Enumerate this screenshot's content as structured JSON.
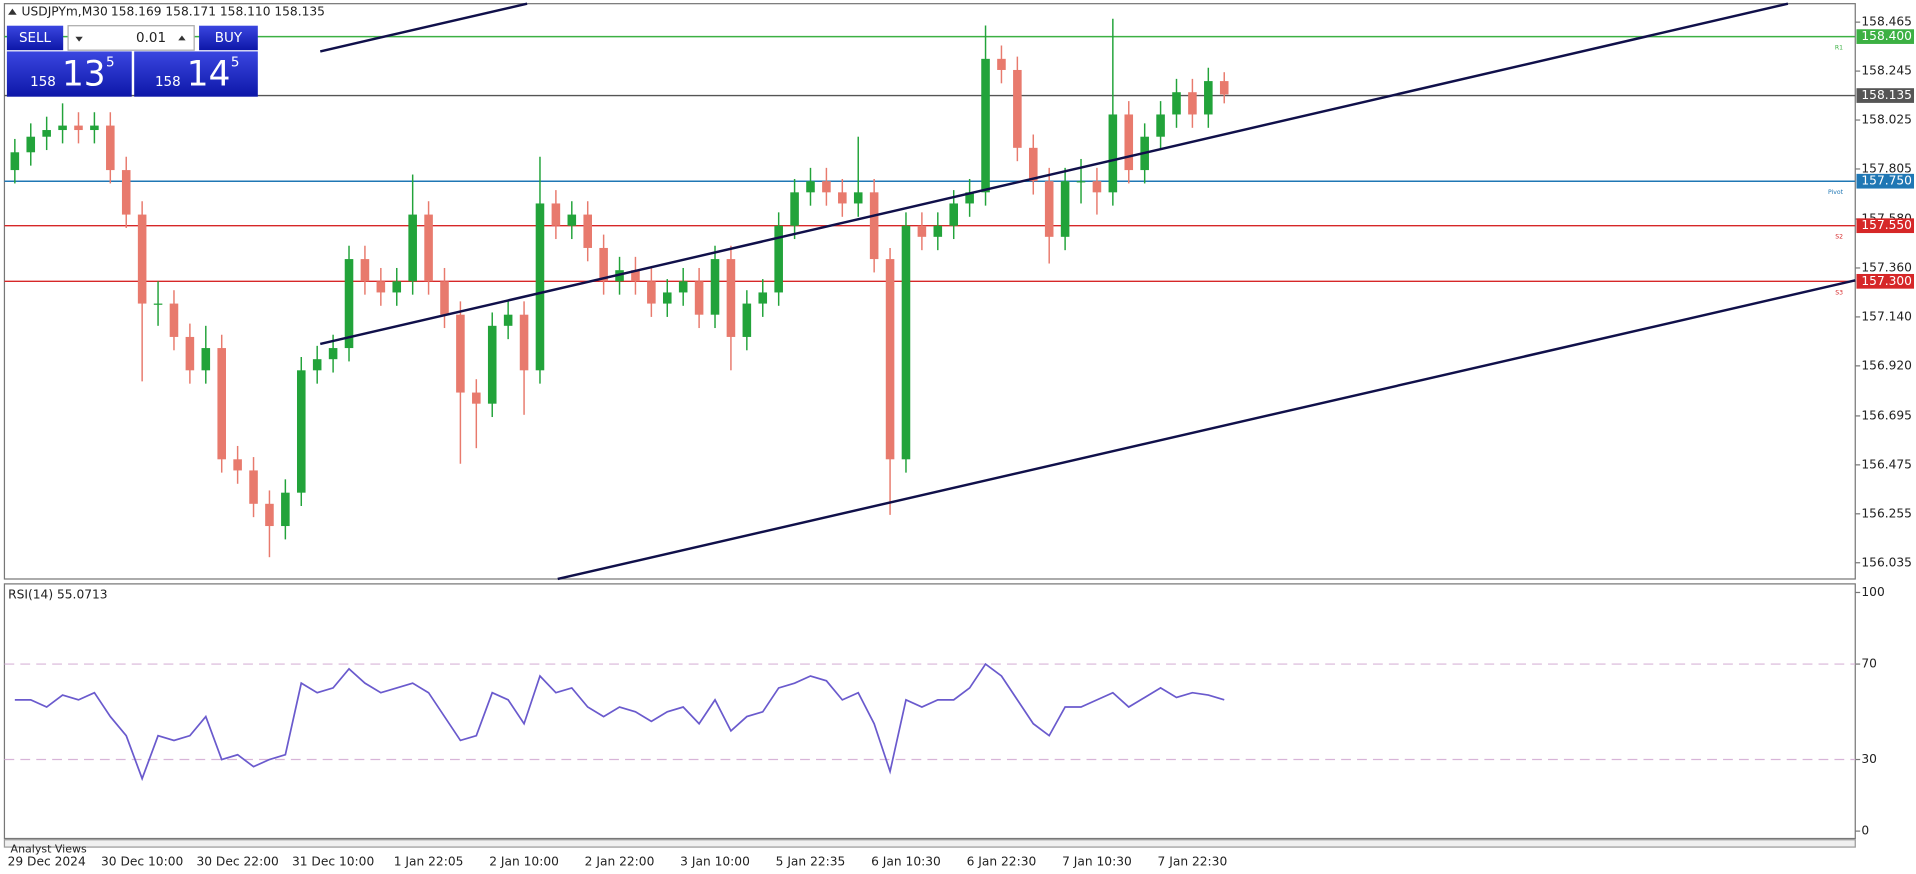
{
  "header": {
    "symbol": "USDJPYm,M30",
    "quotes": "158.169 158.171 158.110 158.135"
  },
  "trade_panel": {
    "sell_label": "SELL",
    "lot": "0.01",
    "buy_label": "BUY",
    "sell_price": {
      "big_figure": "158",
      "pips": "13",
      "fraction": "5"
    },
    "buy_price": {
      "big_figure": "158",
      "pips": "14",
      "fraction": "5"
    }
  },
  "footer_tab": "Analyst Views",
  "chart_data": [
    {
      "type": "candlestick",
      "up_color": "#22a33a",
      "down_color": "#e87a6d",
      "categories": [
        null,
        null,
        "29 Dec 2024",
        null,
        null,
        null,
        null,
        null,
        "30 Dec 10:00",
        null,
        null,
        null,
        null,
        null,
        "30 Dec 22:00",
        null,
        null,
        null,
        null,
        null,
        "31 Dec 10:00",
        null,
        null,
        null,
        null,
        null,
        "1 Jan 22:05",
        null,
        null,
        null,
        null,
        null,
        "2 Jan 10:00",
        null,
        null,
        null,
        null,
        null,
        "2 Jan 22:00",
        null,
        null,
        null,
        null,
        null,
        "3 Jan 10:00",
        null,
        null,
        null,
        null,
        null,
        "5 Jan 22:35",
        null,
        null,
        null,
        null,
        null,
        "6 Jan 10:30",
        null,
        null,
        null,
        null,
        null,
        "6 Jan 22:30",
        null,
        null,
        null,
        null,
        null,
        "7 Jan 10:30",
        null,
        null,
        null,
        null,
        null,
        "7 Jan 22:30",
        null,
        null
      ],
      "open": [
        157.8,
        157.88,
        157.95,
        157.98,
        158.0,
        157.98,
        158.0,
        157.8,
        157.6,
        157.2,
        157.2,
        157.05,
        156.9,
        157.0,
        156.5,
        156.45,
        156.3,
        156.2,
        156.35,
        156.9,
        156.95,
        157.0,
        157.4,
        157.3,
        157.25,
        157.3,
        157.6,
        157.3,
        157.15,
        156.8,
        156.75,
        157.1,
        157.15,
        156.9,
        157.65,
        157.55,
        157.6,
        157.45,
        157.3,
        157.35,
        157.3,
        157.2,
        157.25,
        157.3,
        157.15,
        157.4,
        157.05,
        157.2,
        157.25,
        157.55,
        157.7,
        157.75,
        157.7,
        157.65,
        157.7,
        157.4,
        156.5,
        157.55,
        157.5,
        157.55,
        157.65,
        157.7,
        158.3,
        158.25,
        157.9,
        157.75,
        157.5,
        157.75,
        157.75,
        157.7,
        158.05,
        157.8,
        157.95,
        158.05,
        158.15,
        158.05,
        158.2
      ],
      "high": [
        157.94,
        158.01,
        158.04,
        158.1,
        158.06,
        158.06,
        158.06,
        157.86,
        157.66,
        157.3,
        157.26,
        157.11,
        157.1,
        157.06,
        156.56,
        156.51,
        156.36,
        156.41,
        156.96,
        157.01,
        157.06,
        157.46,
        157.46,
        157.36,
        157.36,
        157.78,
        157.66,
        157.36,
        157.21,
        156.86,
        157.16,
        157.21,
        157.21,
        157.86,
        157.71,
        157.66,
        157.66,
        157.51,
        157.41,
        157.41,
        157.36,
        157.31,
        157.36,
        157.36,
        157.46,
        157.46,
        157.26,
        157.31,
        157.61,
        157.76,
        157.81,
        157.81,
        157.76,
        157.95,
        157.76,
        157.45,
        157.61,
        157.61,
        157.61,
        157.71,
        157.76,
        158.45,
        158.36,
        158.31,
        157.96,
        157.81,
        157.81,
        157.85,
        157.81,
        158.48,
        158.11,
        158.01,
        158.11,
        158.21,
        158.21,
        158.26,
        158.24
      ],
      "low": [
        157.74,
        157.82,
        157.89,
        157.92,
        157.92,
        157.92,
        157.74,
        157.54,
        156.85,
        157.1,
        156.99,
        156.84,
        156.84,
        156.44,
        156.39,
        156.24,
        156.06,
        156.14,
        156.29,
        156.84,
        156.89,
        156.94,
        157.24,
        157.19,
        157.19,
        157.24,
        157.24,
        157.09,
        156.48,
        156.55,
        156.69,
        157.04,
        156.7,
        156.84,
        157.49,
        157.49,
        157.39,
        157.24,
        157.24,
        157.24,
        157.14,
        157.14,
        157.19,
        157.09,
        157.09,
        156.9,
        156.99,
        157.14,
        157.19,
        157.49,
        157.64,
        157.64,
        157.59,
        157.59,
        157.34,
        156.25,
        156.44,
        157.44,
        157.44,
        157.49,
        157.59,
        157.64,
        158.19,
        157.84,
        157.69,
        157.38,
        157.44,
        157.65,
        157.6,
        157.64,
        157.74,
        157.74,
        157.89,
        157.99,
        157.99,
        157.99,
        158.1
      ],
      "close": [
        157.88,
        157.95,
        157.98,
        158.0,
        157.98,
        158.0,
        157.8,
        157.6,
        157.2,
        157.2,
        157.05,
        156.9,
        157.0,
        156.5,
        156.45,
        156.3,
        156.2,
        156.35,
        156.9,
        156.95,
        157.0,
        157.4,
        157.3,
        157.25,
        157.3,
        157.6,
        157.3,
        157.15,
        156.8,
        156.75,
        157.1,
        157.15,
        156.9,
        157.65,
        157.55,
        157.6,
        157.45,
        157.3,
        157.35,
        157.3,
        157.2,
        157.25,
        157.3,
        157.15,
        157.4,
        157.05,
        157.2,
        157.25,
        157.55,
        157.7,
        157.75,
        157.7,
        157.65,
        157.7,
        157.4,
        156.5,
        157.55,
        157.5,
        157.55,
        157.65,
        157.7,
        158.3,
        158.25,
        157.9,
        157.75,
        157.5,
        157.75,
        157.75,
        157.7,
        158.05,
        157.8,
        157.95,
        158.05,
        158.15,
        158.05,
        158.2,
        158.14
      ],
      "ylim": [
        155.962,
        158.548
      ],
      "yticks": [
        158.465,
        158.245,
        158.025,
        157.805,
        {
          "value": 157.58,
          "label": "157.580"
        },
        {
          "value": 157.36,
          "label": "157.360"
        },
        {
          "value": 157.14,
          "label": "157.140"
        },
        {
          "value": 156.92,
          "label": "156.920"
        },
        156.695,
        156.475,
        156.255,
        156.035
      ],
      "levels": [
        {
          "value": 158.4,
          "label": "158.400",
          "name": "R1",
          "color": "#3cb043"
        },
        {
          "value": 158.135,
          "label": "158.135",
          "color": "#555555"
        },
        {
          "value": 157.75,
          "label": "157.750",
          "name": "Pivot",
          "color": "#1f77b4"
        },
        {
          "value": 157.55,
          "label": "157.550",
          "name": "S2",
          "color": "#d62728"
        },
        {
          "value": 157.3,
          "label": "157.300",
          "name": "S3",
          "color": "#d62728"
        }
      ]
    },
    {
      "type": "line",
      "title": "RSI(14) 55.0713",
      "color": "#6a5acd",
      "values": [
        55,
        55,
        52,
        57,
        55,
        58,
        48,
        40,
        22,
        40,
        38,
        40,
        48,
        30,
        32,
        27,
        30,
        32,
        62,
        58,
        60,
        68,
        62,
        58,
        60,
        62,
        58,
        48,
        38,
        40,
        58,
        55,
        45,
        65,
        58,
        60,
        52,
        48,
        52,
        50,
        46,
        50,
        52,
        45,
        55,
        42,
        48,
        50,
        60,
        62,
        65,
        63,
        55,
        58,
        45,
        25,
        55,
        52,
        55,
        55,
        60,
        70,
        65,
        55,
        45,
        40,
        52,
        52,
        55,
        58,
        52,
        56,
        60,
        56,
        58,
        57,
        55
      ],
      "ylim": [
        -3.1,
        103.6
      ],
      "yticks": [
        100,
        70,
        30,
        0
      ],
      "level_lines": [
        70,
        30
      ]
    }
  ]
}
